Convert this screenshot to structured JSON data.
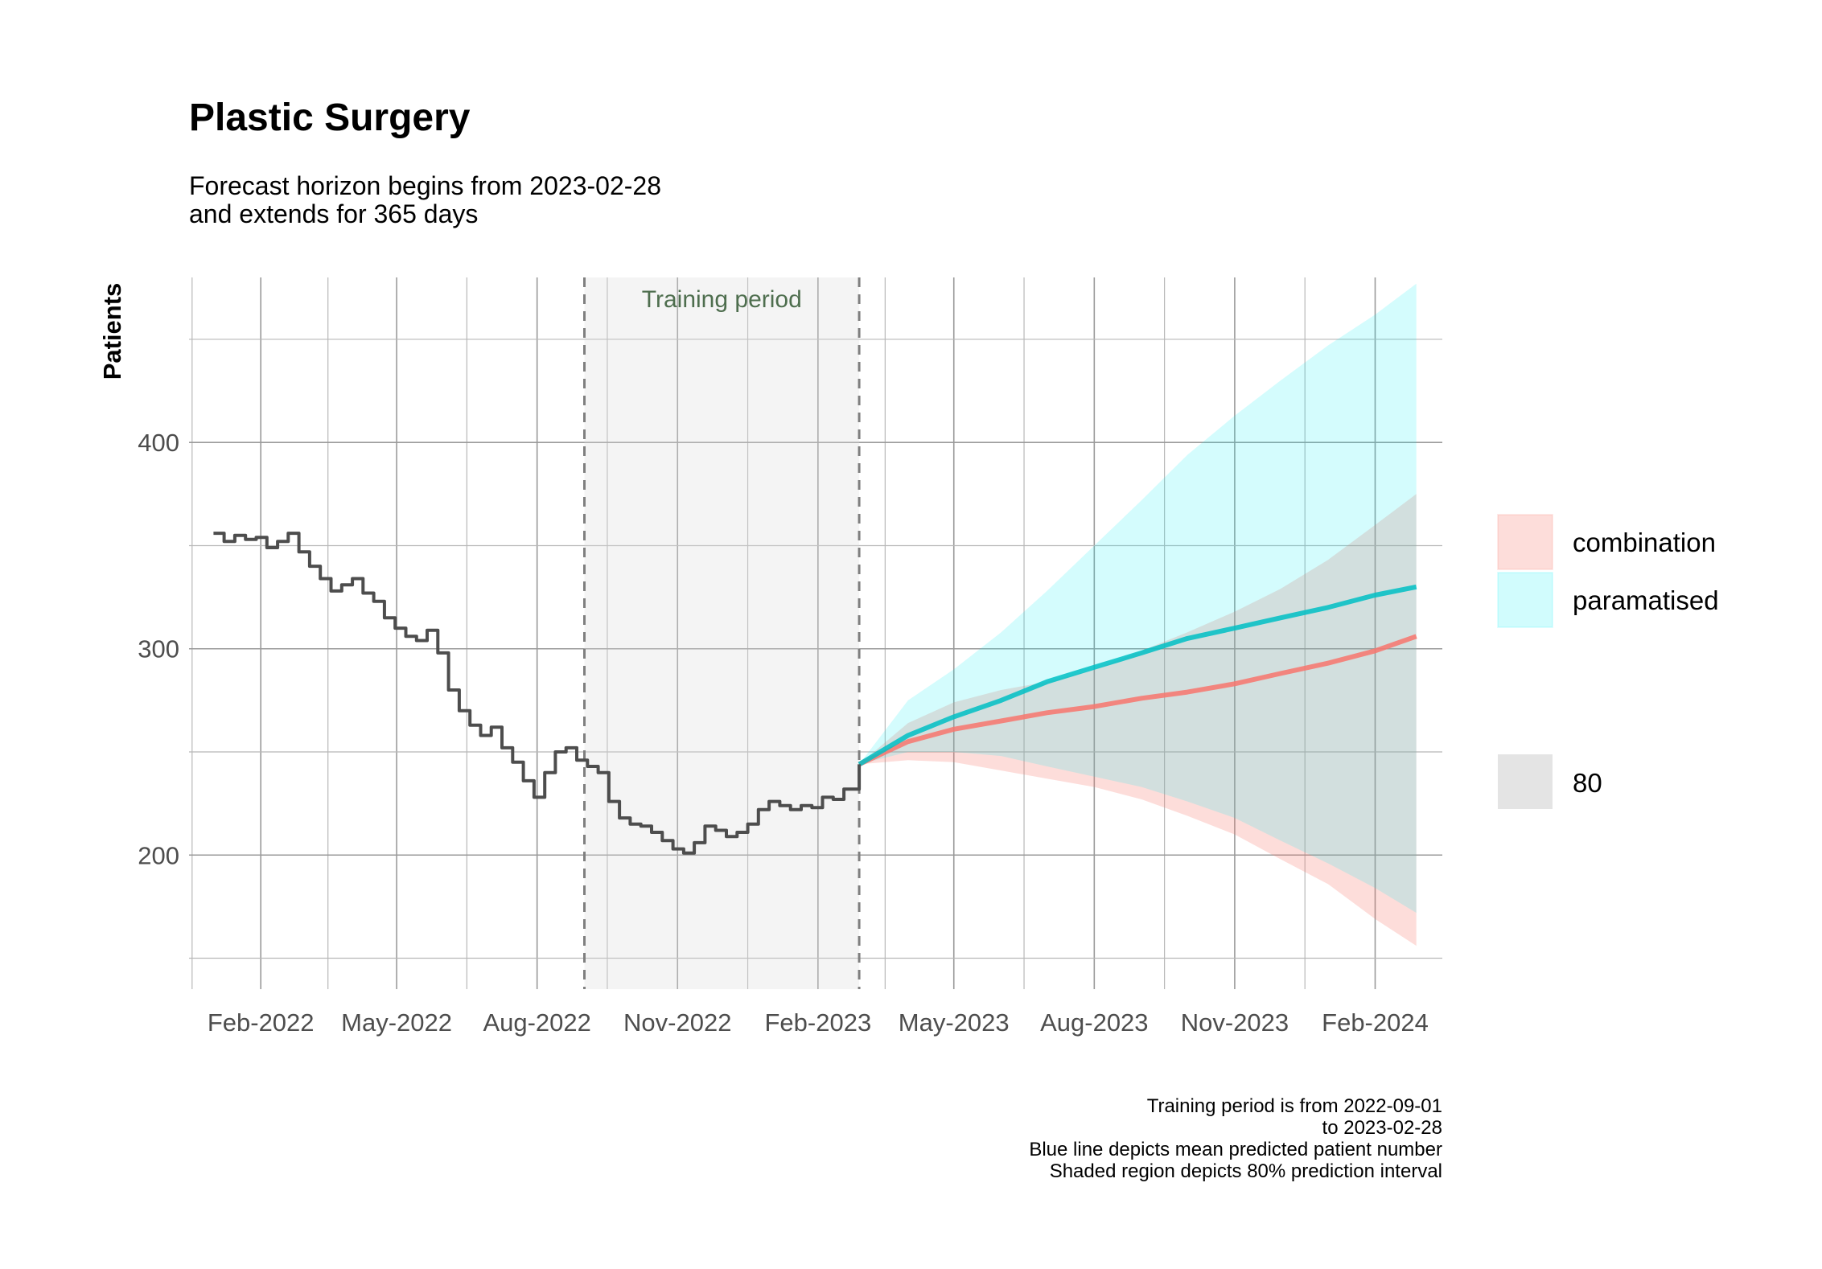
{
  "chart_data": {
    "type": "line",
    "title": "Plastic Surgery",
    "subtitle": [
      "Forecast horizon begins from 2023-02-28",
      "and extends for 365 days"
    ],
    "ylabel": "Patients",
    "xlabel": "",
    "x_ticks": [
      "Feb-2022",
      "May-2022",
      "Aug-2022",
      "Nov-2022",
      "Feb-2023",
      "May-2023",
      "Aug-2023",
      "Nov-2023",
      "Feb-2024"
    ],
    "y_ticks": [
      200,
      300,
      400
    ],
    "ylim": [
      135,
      480
    ],
    "xlim": [
      "2021-12-16",
      "2024-03-16"
    ],
    "grid": true,
    "training_period": {
      "start": "2022-09-01",
      "end": "2023-02-28",
      "label": "Training period"
    },
    "observed": {
      "x": [
        "2022-01-01",
        "2022-01-08",
        "2022-01-15",
        "2022-01-22",
        "2022-01-29",
        "2022-02-05",
        "2022-02-12",
        "2022-02-19",
        "2022-02-26",
        "2022-03-05",
        "2022-03-12",
        "2022-03-19",
        "2022-03-26",
        "2022-04-02",
        "2022-04-09",
        "2022-04-16",
        "2022-04-23",
        "2022-04-30",
        "2022-05-07",
        "2022-05-14",
        "2022-05-21",
        "2022-05-28",
        "2022-06-04",
        "2022-06-11",
        "2022-06-18",
        "2022-06-25",
        "2022-07-02",
        "2022-07-09",
        "2022-07-16",
        "2022-07-23",
        "2022-07-30",
        "2022-08-06",
        "2022-08-13",
        "2022-08-20",
        "2022-08-27",
        "2022-09-03",
        "2022-09-10",
        "2022-09-17",
        "2022-09-24",
        "2022-10-01",
        "2022-10-08",
        "2022-10-15",
        "2022-10-22",
        "2022-10-29",
        "2022-11-05",
        "2022-11-12",
        "2022-11-19",
        "2022-11-26",
        "2022-12-03",
        "2022-12-10",
        "2022-12-17",
        "2022-12-24",
        "2022-12-31",
        "2023-01-07",
        "2023-01-14",
        "2023-01-21",
        "2023-01-28",
        "2023-02-04",
        "2023-02-11",
        "2023-02-18",
        "2023-02-28"
      ],
      "values": [
        356,
        352,
        355,
        353,
        354,
        349,
        352,
        356,
        347,
        340,
        334,
        328,
        331,
        334,
        327,
        323,
        315,
        310,
        306,
        304,
        309,
        298,
        280,
        270,
        263,
        258,
        262,
        252,
        245,
        236,
        228,
        240,
        250,
        252,
        246,
        243,
        240,
        226,
        218,
        215,
        214,
        211,
        207,
        203,
        201,
        206,
        214,
        212,
        209,
        211,
        215,
        222,
        226,
        224,
        222,
        224,
        223,
        228,
        227,
        232,
        244
      ]
    },
    "forecast_x": [
      "2023-02-28",
      "2023-04-01",
      "2023-05-01",
      "2023-06-01",
      "2023-07-01",
      "2023-08-01",
      "2023-09-01",
      "2023-10-01",
      "2023-11-01",
      "2023-12-01",
      "2024-01-01",
      "2024-02-01",
      "2024-02-28"
    ],
    "series": [
      {
        "name": "combination",
        "color": "#f8766d",
        "mean": [
          244,
          255,
          261,
          265,
          269,
          272,
          276,
          279,
          283,
          288,
          293,
          299,
          306
        ],
        "lower": [
          244,
          246,
          245,
          241,
          237,
          233,
          227,
          219,
          210,
          198,
          186,
          169,
          156
        ],
        "upper": [
          244,
          264,
          274,
          280,
          284,
          290,
          299,
          308,
          318,
          329,
          343,
          360,
          375
        ]
      },
      {
        "name": "paramatised",
        "color": "#00bfc4",
        "mean": [
          244,
          258,
          267,
          275,
          284,
          291,
          298,
          305,
          310,
          315,
          320,
          326,
          330
        ],
        "lower": [
          244,
          250,
          250,
          248,
          243,
          238,
          233,
          226,
          218,
          207,
          196,
          184,
          172
        ],
        "upper": [
          244,
          275,
          290,
          308,
          328,
          350,
          372,
          394,
          413,
          430,
          447,
          462,
          477
        ]
      }
    ],
    "legend": {
      "items": [
        "combination",
        "paramatised"
      ],
      "level_label": "80",
      "position": "right"
    },
    "caption": [
      "Training period is from 2022-09-01",
      "to 2023-02-28",
      "Blue line depicts mean predicted patient number",
      "Shaded region depicts 80% prediction interval"
    ]
  }
}
